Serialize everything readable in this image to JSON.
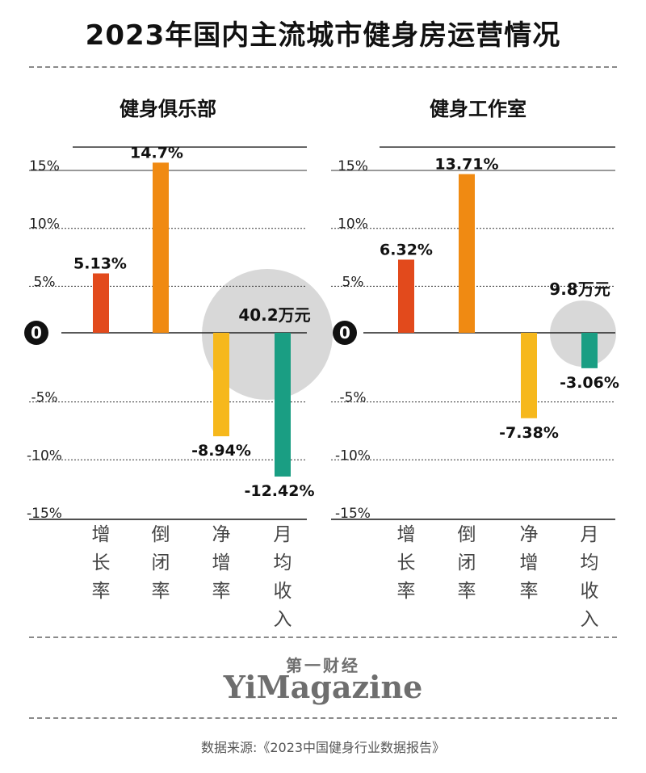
{
  "title": "2023年国内主流城市健身房运营情况",
  "brand": {
    "cn": "第一财经",
    "en": "YiMagazine"
  },
  "source": "数据来源:《2023中国健身行业数据报告》",
  "colors": {
    "增长率": "#e24a1c",
    "倒闭率": "#f08a12",
    "净增率": "#f6b81c",
    "月均收入": "#1a9e83",
    "bubble": "#d8d8d8"
  },
  "chart_data": [
    {
      "type": "bar",
      "title": "健身俱乐部",
      "categories": [
        "增长率",
        "倒闭率",
        "净增率",
        "月均收入"
      ],
      "values": [
        5.13,
        14.7,
        -8.94,
        -12.42
      ],
      "value_labels": [
        "5.13%",
        "14.7%",
        "-8.94%",
        "-12.42%"
      ],
      "unit": "%",
      "annotation": {
        "category": "月均收入",
        "text": "40.2万元"
      },
      "yticks": [
        15,
        10,
        5,
        0,
        -5,
        -10,
        -15
      ],
      "ytick_labels": [
        "15%",
        "10%",
        "5%",
        "0",
        "-5%",
        "-10%",
        "-15%"
      ],
      "ylim": [
        -15,
        15
      ]
    },
    {
      "type": "bar",
      "title": "健身工作室",
      "categories": [
        "增长率",
        "倒闭率",
        "净增率",
        "月均收入"
      ],
      "values": [
        6.32,
        13.71,
        -7.38,
        -3.06
      ],
      "value_labels": [
        "6.32%",
        "13.71%",
        "-7.38%",
        "-3.06%"
      ],
      "unit": "%",
      "annotation": {
        "category": "月均收入",
        "text": "9.8万元"
      },
      "yticks": [
        15,
        10,
        5,
        0,
        -5,
        -10,
        -15
      ],
      "ytick_labels": [
        "15%",
        "10%",
        "5%",
        "0",
        "-5%",
        "-10%",
        "-15%"
      ],
      "ylim": [
        -15,
        15
      ]
    }
  ]
}
